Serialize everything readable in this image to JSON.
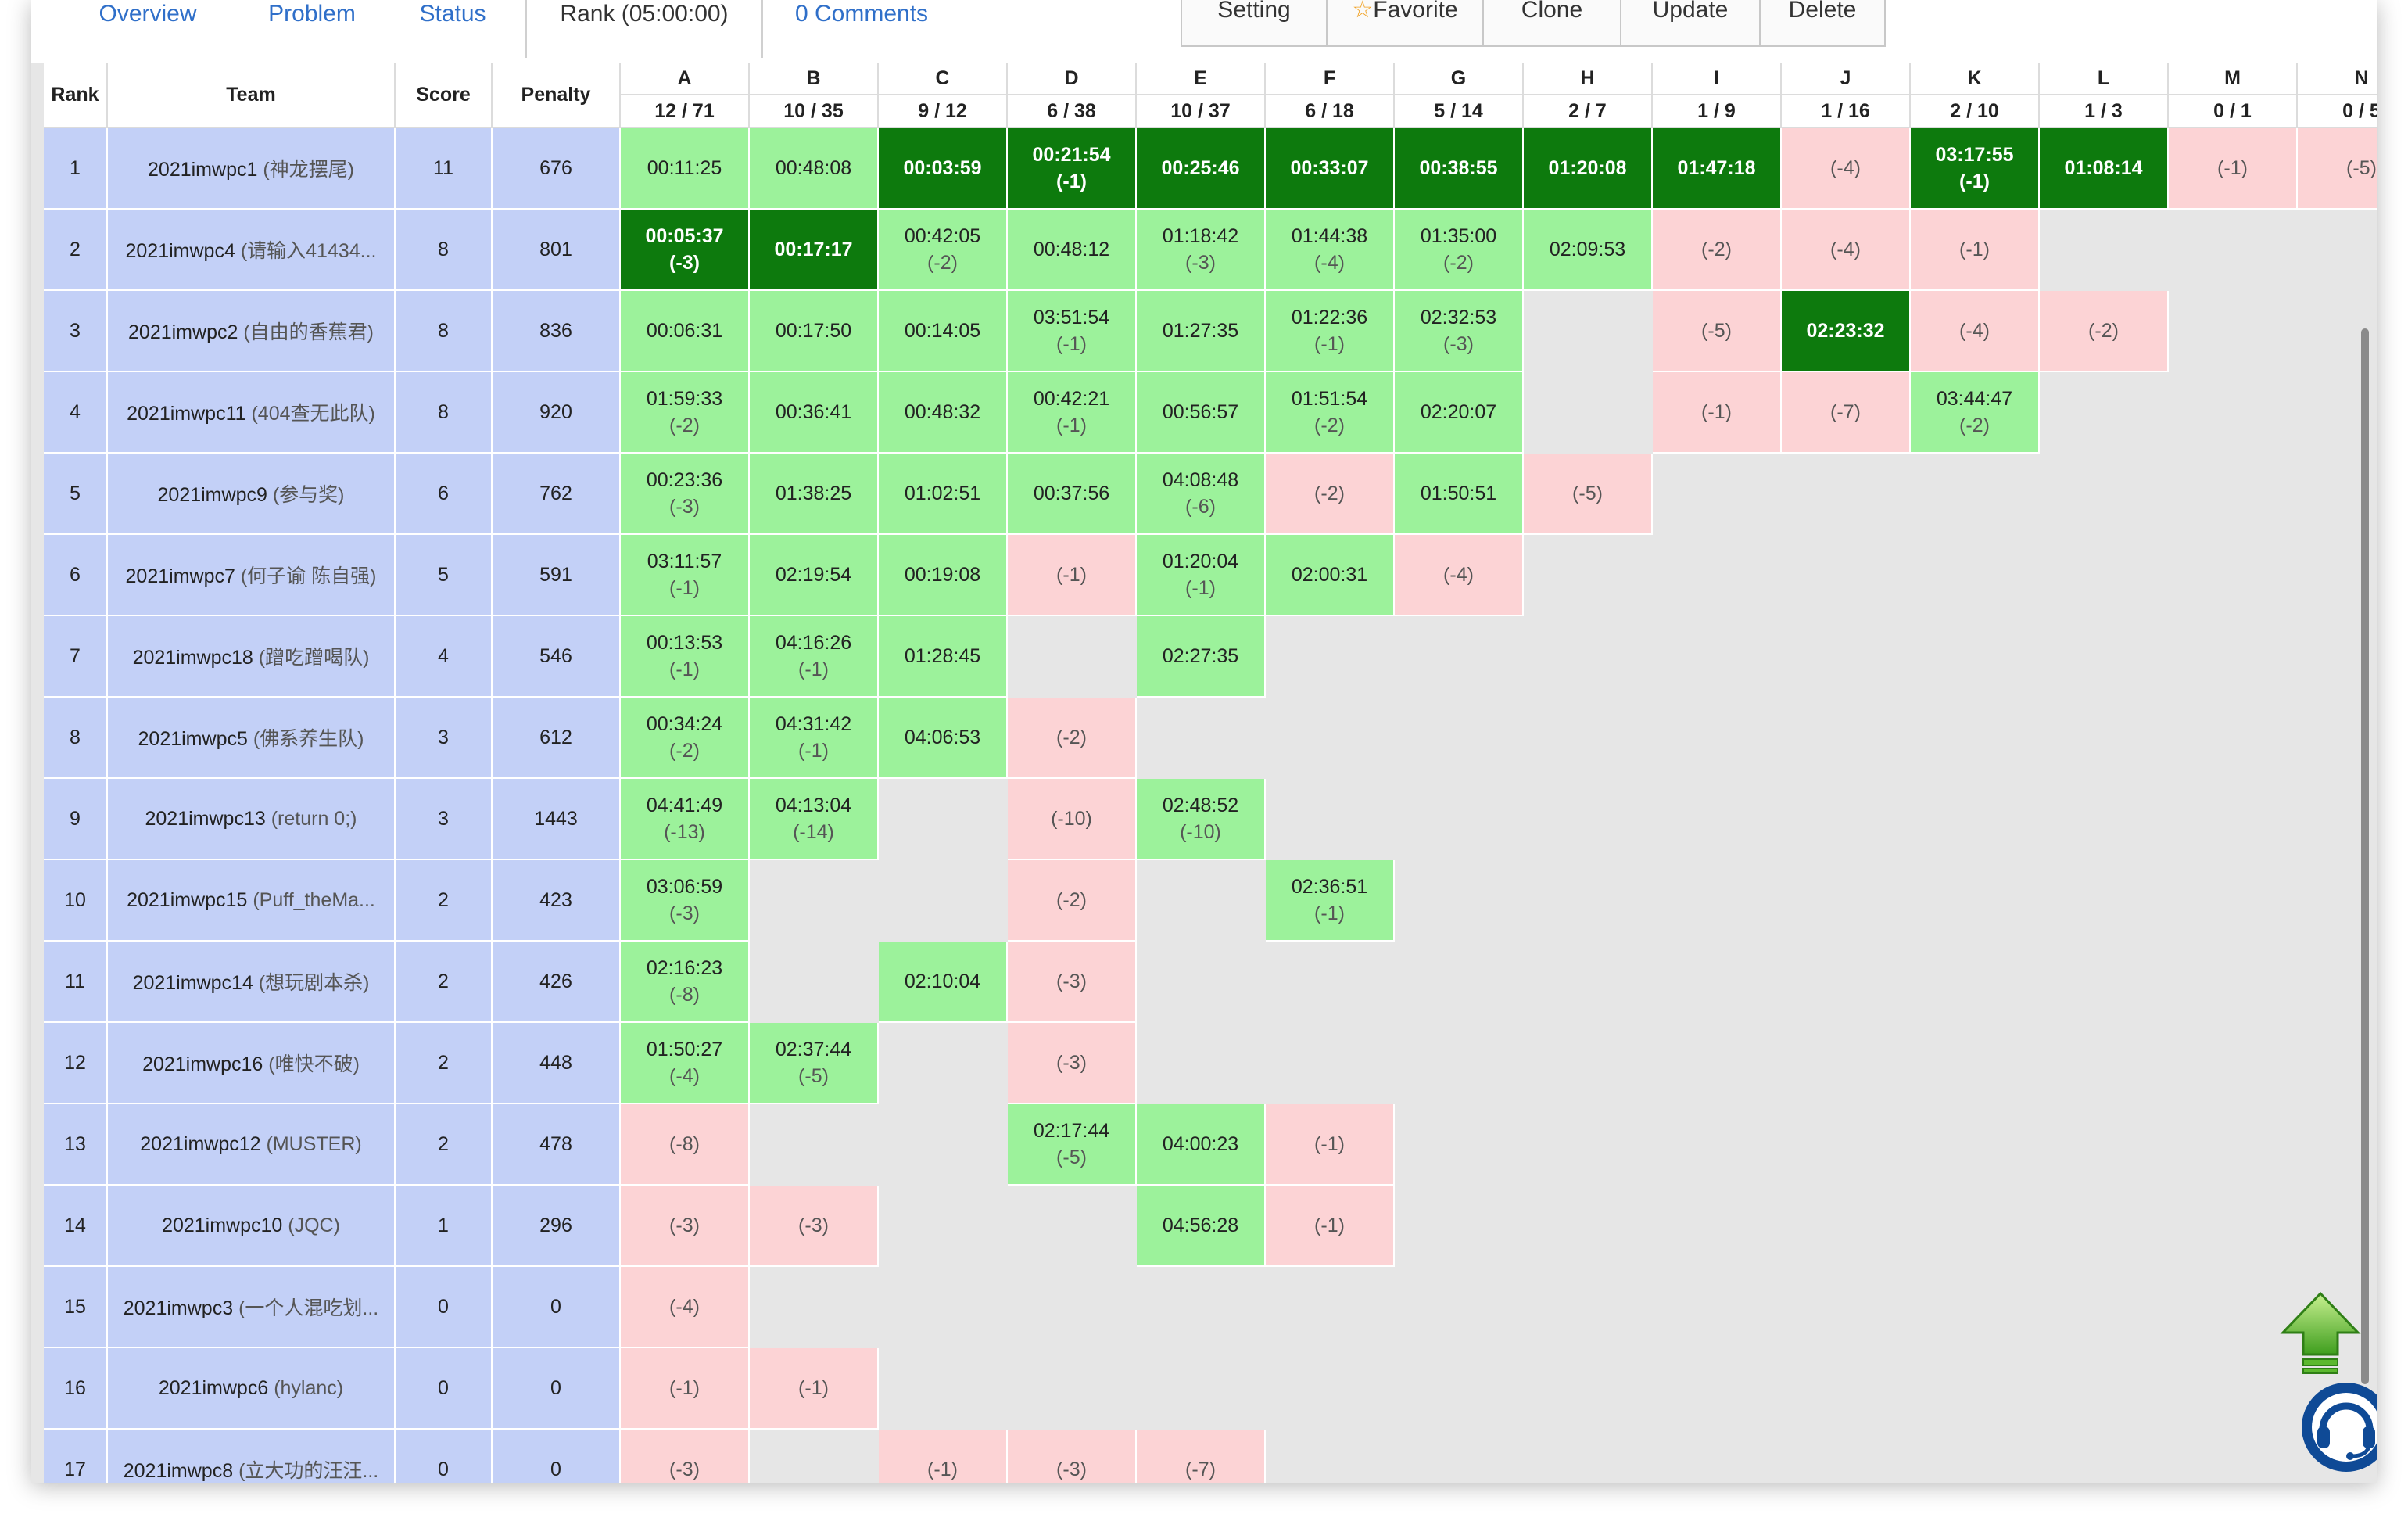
{
  "tabs": [
    {
      "label": "Overview"
    },
    {
      "label": "Problem"
    },
    {
      "label": "Status"
    },
    {
      "label": "Rank (05:00:00)"
    },
    {
      "label": "0 Comments"
    }
  ],
  "toolbar": [
    {
      "label": "Setting"
    },
    {
      "label": "Favorite",
      "star": "☆"
    },
    {
      "label": "Clone"
    },
    {
      "label": "Update"
    },
    {
      "label": "Delete"
    }
  ],
  "headers": {
    "rank": "Rank",
    "team": "Team",
    "score": "Score",
    "penalty": "Penalty"
  },
  "problems": [
    {
      "letter": "A",
      "ratio": "12 / 71"
    },
    {
      "letter": "B",
      "ratio": "10 / 35"
    },
    {
      "letter": "C",
      "ratio": "9 / 12"
    },
    {
      "letter": "D",
      "ratio": "6 / 38"
    },
    {
      "letter": "E",
      "ratio": "10 / 37"
    },
    {
      "letter": "F",
      "ratio": "6 / 18"
    },
    {
      "letter": "G",
      "ratio": "5 / 14"
    },
    {
      "letter": "H",
      "ratio": "2 / 7"
    },
    {
      "letter": "I",
      "ratio": "1 / 9"
    },
    {
      "letter": "J",
      "ratio": "1 / 16"
    },
    {
      "letter": "K",
      "ratio": "2 / 10"
    },
    {
      "letter": "L",
      "ratio": "1 / 3"
    },
    {
      "letter": "M",
      "ratio": "0 / 1"
    },
    {
      "letter": "N",
      "ratio": "0 / 5"
    }
  ],
  "rows": [
    {
      "rank": "1",
      "team": "2021imwpc1",
      "nick": "(神龙摆尾)",
      "score": "11",
      "penalty": "676",
      "cells": [
        {
          "s": "ac",
          "t": "00:11:25"
        },
        {
          "s": "ac",
          "t": "00:48:08"
        },
        {
          "s": "fb",
          "t": "00:03:59"
        },
        {
          "s": "fb",
          "t": "00:21:54",
          "a": "(-1)"
        },
        {
          "s": "fb",
          "t": "00:25:46"
        },
        {
          "s": "fb",
          "t": "00:33:07"
        },
        {
          "s": "fb",
          "t": "00:38:55"
        },
        {
          "s": "fb",
          "t": "01:20:08"
        },
        {
          "s": "fb",
          "t": "01:47:18"
        },
        {
          "s": "wa",
          "a": "(-4)"
        },
        {
          "s": "fb",
          "t": "03:17:55",
          "a": "(-1)"
        },
        {
          "s": "fb",
          "t": "01:08:14"
        },
        {
          "s": "wa",
          "a": "(-1)"
        },
        {
          "s": "wa",
          "a": "(-5)"
        }
      ]
    },
    {
      "rank": "2",
      "team": "2021imwpc4",
      "nick": "(请输入41434...",
      "score": "8",
      "penalty": "801",
      "cells": [
        {
          "s": "fb",
          "t": "00:05:37",
          "a": "(-3)"
        },
        {
          "s": "fb",
          "t": "00:17:17"
        },
        {
          "s": "ac",
          "t": "00:42:05",
          "a": "(-2)"
        },
        {
          "s": "ac",
          "t": "00:48:12"
        },
        {
          "s": "ac",
          "t": "01:18:42",
          "a": "(-3)"
        },
        {
          "s": "ac",
          "t": "01:44:38",
          "a": "(-4)"
        },
        {
          "s": "ac",
          "t": "01:35:00",
          "a": "(-2)"
        },
        {
          "s": "ac",
          "t": "02:09:53"
        },
        {
          "s": "wa",
          "a": "(-2)"
        },
        {
          "s": "wa",
          "a": "(-4)"
        },
        {
          "s": "wa",
          "a": "(-1)"
        },
        {
          "s": "none"
        },
        {
          "s": "none"
        },
        {
          "s": "none"
        }
      ]
    },
    {
      "rank": "3",
      "team": "2021imwpc2",
      "nick": "(自由的香蕉君)",
      "score": "8",
      "penalty": "836",
      "cells": [
        {
          "s": "ac",
          "t": "00:06:31"
        },
        {
          "s": "ac",
          "t": "00:17:50"
        },
        {
          "s": "ac",
          "t": "00:14:05"
        },
        {
          "s": "ac",
          "t": "03:51:54",
          "a": "(-1)"
        },
        {
          "s": "ac",
          "t": "01:27:35"
        },
        {
          "s": "ac",
          "t": "01:22:36",
          "a": "(-1)"
        },
        {
          "s": "ac",
          "t": "02:32:53",
          "a": "(-3)"
        },
        {
          "s": "none"
        },
        {
          "s": "wa",
          "a": "(-5)"
        },
        {
          "s": "fb",
          "t": "02:23:32"
        },
        {
          "s": "wa",
          "a": "(-4)"
        },
        {
          "s": "wa",
          "a": "(-2)"
        },
        {
          "s": "none"
        },
        {
          "s": "none"
        }
      ]
    },
    {
      "rank": "4",
      "team": "2021imwpc11",
      "nick": "(404查无此队)",
      "score": "8",
      "penalty": "920",
      "cells": [
        {
          "s": "ac",
          "t": "01:59:33",
          "a": "(-2)"
        },
        {
          "s": "ac",
          "t": "00:36:41"
        },
        {
          "s": "ac",
          "t": "00:48:32"
        },
        {
          "s": "ac",
          "t": "00:42:21",
          "a": "(-1)"
        },
        {
          "s": "ac",
          "t": "00:56:57"
        },
        {
          "s": "ac",
          "t": "01:51:54",
          "a": "(-2)"
        },
        {
          "s": "ac",
          "t": "02:20:07"
        },
        {
          "s": "none"
        },
        {
          "s": "wa",
          "a": "(-1)"
        },
        {
          "s": "wa",
          "a": "(-7)"
        },
        {
          "s": "ac",
          "t": "03:44:47",
          "a": "(-2)"
        },
        {
          "s": "none"
        },
        {
          "s": "none"
        },
        {
          "s": "none"
        }
      ]
    },
    {
      "rank": "5",
      "team": "2021imwpc9",
      "nick": "(参与奖)",
      "score": "6",
      "penalty": "762",
      "cells": [
        {
          "s": "ac",
          "t": "00:23:36",
          "a": "(-3)"
        },
        {
          "s": "ac",
          "t": "01:38:25"
        },
        {
          "s": "ac",
          "t": "01:02:51"
        },
        {
          "s": "ac",
          "t": "00:37:56"
        },
        {
          "s": "ac",
          "t": "04:08:48",
          "a": "(-6)"
        },
        {
          "s": "wa",
          "a": "(-2)"
        },
        {
          "s": "ac",
          "t": "01:50:51"
        },
        {
          "s": "wa",
          "a": "(-5)"
        },
        {
          "s": "none"
        },
        {
          "s": "none"
        },
        {
          "s": "none"
        },
        {
          "s": "none"
        },
        {
          "s": "none"
        },
        {
          "s": "none"
        }
      ]
    },
    {
      "rank": "6",
      "team": "2021imwpc7",
      "nick": "(何子谕 陈自强)",
      "score": "5",
      "penalty": "591",
      "cells": [
        {
          "s": "ac",
          "t": "03:11:57",
          "a": "(-1)"
        },
        {
          "s": "ac",
          "t": "02:19:54"
        },
        {
          "s": "ac",
          "t": "00:19:08"
        },
        {
          "s": "wa",
          "a": "(-1)"
        },
        {
          "s": "ac",
          "t": "01:20:04",
          "a": "(-1)"
        },
        {
          "s": "ac",
          "t": "02:00:31"
        },
        {
          "s": "wa",
          "a": "(-4)"
        },
        {
          "s": "none"
        },
        {
          "s": "none"
        },
        {
          "s": "none"
        },
        {
          "s": "none"
        },
        {
          "s": "none"
        },
        {
          "s": "none"
        },
        {
          "s": "none"
        }
      ]
    },
    {
      "rank": "7",
      "team": "2021imwpc18",
      "nick": "(蹭吃蹭喝队)",
      "score": "4",
      "penalty": "546",
      "cells": [
        {
          "s": "ac",
          "t": "00:13:53",
          "a": "(-1)"
        },
        {
          "s": "ac",
          "t": "04:16:26",
          "a": "(-1)"
        },
        {
          "s": "ac",
          "t": "01:28:45"
        },
        {
          "s": "none"
        },
        {
          "s": "ac",
          "t": "02:27:35"
        },
        {
          "s": "none"
        },
        {
          "s": "none"
        },
        {
          "s": "none"
        },
        {
          "s": "none"
        },
        {
          "s": "none"
        },
        {
          "s": "none"
        },
        {
          "s": "none"
        },
        {
          "s": "none"
        },
        {
          "s": "none"
        }
      ]
    },
    {
      "rank": "8",
      "team": "2021imwpc5",
      "nick": "(佛系养生队)",
      "score": "3",
      "penalty": "612",
      "cells": [
        {
          "s": "ac",
          "t": "00:34:24",
          "a": "(-2)"
        },
        {
          "s": "ac",
          "t": "04:31:42",
          "a": "(-1)"
        },
        {
          "s": "ac",
          "t": "04:06:53"
        },
        {
          "s": "wa",
          "a": "(-2)"
        },
        {
          "s": "none"
        },
        {
          "s": "none"
        },
        {
          "s": "none"
        },
        {
          "s": "none"
        },
        {
          "s": "none"
        },
        {
          "s": "none"
        },
        {
          "s": "none"
        },
        {
          "s": "none"
        },
        {
          "s": "none"
        },
        {
          "s": "none"
        }
      ]
    },
    {
      "rank": "9",
      "team": "2021imwpc13",
      "nick": "(return 0;)",
      "score": "3",
      "penalty": "1443",
      "cells": [
        {
          "s": "ac",
          "t": "04:41:49",
          "a": "(-13)"
        },
        {
          "s": "ac",
          "t": "04:13:04",
          "a": "(-14)"
        },
        {
          "s": "none"
        },
        {
          "s": "wa",
          "a": "(-10)"
        },
        {
          "s": "ac",
          "t": "02:48:52",
          "a": "(-10)"
        },
        {
          "s": "none"
        },
        {
          "s": "none"
        },
        {
          "s": "none"
        },
        {
          "s": "none"
        },
        {
          "s": "none"
        },
        {
          "s": "none"
        },
        {
          "s": "none"
        },
        {
          "s": "none"
        },
        {
          "s": "none"
        }
      ]
    },
    {
      "rank": "10",
      "team": "2021imwpc15",
      "nick": "(Puff_theMa...",
      "score": "2",
      "penalty": "423",
      "cells": [
        {
          "s": "ac",
          "t": "03:06:59",
          "a": "(-3)"
        },
        {
          "s": "none"
        },
        {
          "s": "none"
        },
        {
          "s": "wa",
          "a": "(-2)"
        },
        {
          "s": "none"
        },
        {
          "s": "ac",
          "t": "02:36:51",
          "a": "(-1)"
        },
        {
          "s": "none"
        },
        {
          "s": "none"
        },
        {
          "s": "none"
        },
        {
          "s": "none"
        },
        {
          "s": "none"
        },
        {
          "s": "none"
        },
        {
          "s": "none"
        },
        {
          "s": "none"
        }
      ]
    },
    {
      "rank": "11",
      "team": "2021imwpc14",
      "nick": "(想玩剧本杀)",
      "score": "2",
      "penalty": "426",
      "cells": [
        {
          "s": "ac",
          "t": "02:16:23",
          "a": "(-8)"
        },
        {
          "s": "none"
        },
        {
          "s": "ac",
          "t": "02:10:04"
        },
        {
          "s": "wa",
          "a": "(-3)"
        },
        {
          "s": "none"
        },
        {
          "s": "none"
        },
        {
          "s": "none"
        },
        {
          "s": "none"
        },
        {
          "s": "none"
        },
        {
          "s": "none"
        },
        {
          "s": "none"
        },
        {
          "s": "none"
        },
        {
          "s": "none"
        },
        {
          "s": "none"
        }
      ]
    },
    {
      "rank": "12",
      "team": "2021imwpc16",
      "nick": "(唯快不破)",
      "score": "2",
      "penalty": "448",
      "cells": [
        {
          "s": "ac",
          "t": "01:50:27",
          "a": "(-4)"
        },
        {
          "s": "ac",
          "t": "02:37:44",
          "a": "(-5)"
        },
        {
          "s": "none"
        },
        {
          "s": "wa",
          "a": "(-3)"
        },
        {
          "s": "none"
        },
        {
          "s": "none"
        },
        {
          "s": "none"
        },
        {
          "s": "none"
        },
        {
          "s": "none"
        },
        {
          "s": "none"
        },
        {
          "s": "none"
        },
        {
          "s": "none"
        },
        {
          "s": "none"
        },
        {
          "s": "none"
        }
      ]
    },
    {
      "rank": "13",
      "team": "2021imwpc12",
      "nick": "(MUSTER)",
      "score": "2",
      "penalty": "478",
      "cells": [
        {
          "s": "wa",
          "a": "(-8)"
        },
        {
          "s": "none"
        },
        {
          "s": "none"
        },
        {
          "s": "ac",
          "t": "02:17:44",
          "a": "(-5)"
        },
        {
          "s": "ac",
          "t": "04:00:23"
        },
        {
          "s": "wa",
          "a": "(-1)"
        },
        {
          "s": "none"
        },
        {
          "s": "none"
        },
        {
          "s": "none"
        },
        {
          "s": "none"
        },
        {
          "s": "none"
        },
        {
          "s": "none"
        },
        {
          "s": "none"
        },
        {
          "s": "none"
        }
      ]
    },
    {
      "rank": "14",
      "team": "2021imwpc10",
      "nick": "(JQC)",
      "score": "1",
      "penalty": "296",
      "cells": [
        {
          "s": "wa",
          "a": "(-3)"
        },
        {
          "s": "wa",
          "a": "(-3)"
        },
        {
          "s": "none"
        },
        {
          "s": "none"
        },
        {
          "s": "ac",
          "t": "04:56:28"
        },
        {
          "s": "wa",
          "a": "(-1)"
        },
        {
          "s": "none"
        },
        {
          "s": "none"
        },
        {
          "s": "none"
        },
        {
          "s": "none"
        },
        {
          "s": "none"
        },
        {
          "s": "none"
        },
        {
          "s": "none"
        },
        {
          "s": "none"
        }
      ]
    },
    {
      "rank": "15",
      "team": "2021imwpc3",
      "nick": "(一个人混吃划...",
      "score": "0",
      "penalty": "0",
      "cells": [
        {
          "s": "wa",
          "a": "(-4)"
        },
        {
          "s": "none"
        },
        {
          "s": "none"
        },
        {
          "s": "none"
        },
        {
          "s": "none"
        },
        {
          "s": "none"
        },
        {
          "s": "none"
        },
        {
          "s": "none"
        },
        {
          "s": "none"
        },
        {
          "s": "none"
        },
        {
          "s": "none"
        },
        {
          "s": "none"
        },
        {
          "s": "none"
        },
        {
          "s": "none"
        }
      ]
    },
    {
      "rank": "16",
      "team": "2021imwpc6",
      "nick": "(hylanc)",
      "score": "0",
      "penalty": "0",
      "cells": [
        {
          "s": "wa",
          "a": "(-1)"
        },
        {
          "s": "wa",
          "a": "(-1)"
        },
        {
          "s": "none"
        },
        {
          "s": "none"
        },
        {
          "s": "none"
        },
        {
          "s": "none"
        },
        {
          "s": "none"
        },
        {
          "s": "none"
        },
        {
          "s": "none"
        },
        {
          "s": "none"
        },
        {
          "s": "none"
        },
        {
          "s": "none"
        },
        {
          "s": "none"
        },
        {
          "s": "none"
        }
      ]
    },
    {
      "rank": "17",
      "team": "2021imwpc8",
      "nick": "(立大功的汪汪...",
      "score": "0",
      "penalty": "0",
      "cells": [
        {
          "s": "wa",
          "a": "(-3)"
        },
        {
          "s": "none"
        },
        {
          "s": "wa",
          "a": "(-1)"
        },
        {
          "s": "wa",
          "a": "(-3)"
        },
        {
          "s": "wa",
          "a": "(-7)"
        },
        {
          "s": "none"
        },
        {
          "s": "none"
        },
        {
          "s": "none"
        },
        {
          "s": "none"
        },
        {
          "s": "none"
        },
        {
          "s": "none"
        },
        {
          "s": "none"
        },
        {
          "s": "none"
        },
        {
          "s": "none"
        }
      ]
    }
  ],
  "colors": {
    "first_blood": "#0d7a0d",
    "accepted": "#9cf29b",
    "wrong": "#fcd3d5",
    "rank_bg": "#c3d0f7",
    "link": "#2f6fc9"
  },
  "icons": {
    "back_to_top": "up-arrow-icon",
    "support": "headset-icon"
  }
}
